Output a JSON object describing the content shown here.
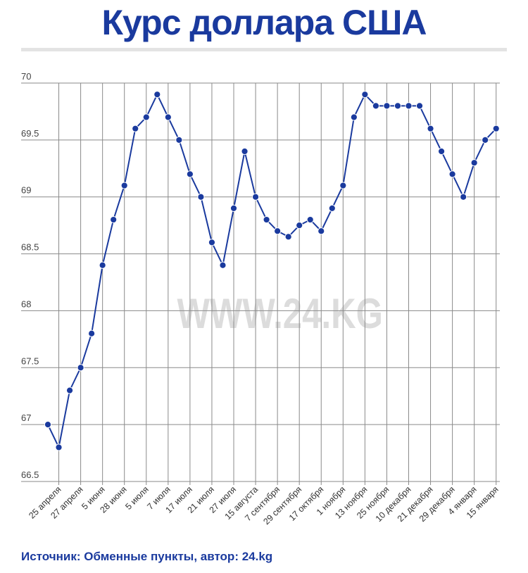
{
  "title": "Курс доллара США",
  "source": "Источник: Обменные пункты, автор: 24.kg",
  "watermark": "WWW.24.KG",
  "colors": {
    "title": "#1a3a9e",
    "line": "#1a3a9e",
    "grid": "#8a8a8a",
    "watermark": "#dcdcdc"
  },
  "chart_data": {
    "type": "line",
    "title": "Курс доллара США",
    "xlabel": "",
    "ylabel": "",
    "ylim": [
      66.5,
      70
    ],
    "yticks": [
      "66.5",
      "67",
      "67.5",
      "68",
      "68.5",
      "69",
      "69.5",
      "70"
    ],
    "x_tick_labels": [
      "25 апреля",
      "27 апреля",
      "5 июня",
      "28 июня",
      "5 июля",
      "7 июля",
      "17 июля",
      "21 июля",
      "27 июля",
      "15 августа",
      "7 сентября",
      "29 сентября",
      "17 октября",
      "1 ноября",
      "13 ноября",
      "25 ноября",
      "10 декабря",
      "21 декабря",
      "29 декабря",
      "4 января",
      "15 января"
    ],
    "grid": true,
    "legend": "none",
    "values": [
      67.0,
      66.8,
      67.3,
      67.5,
      67.8,
      68.4,
      68.8,
      69.1,
      69.6,
      69.7,
      69.9,
      69.7,
      69.5,
      69.2,
      69.0,
      68.6,
      68.4,
      68.9,
      69.4,
      69.0,
      68.8,
      68.7,
      68.65,
      68.75,
      68.8,
      68.7,
      68.9,
      69.1,
      69.7,
      69.9,
      69.8,
      69.8,
      69.8,
      69.8,
      69.8,
      69.6,
      69.4,
      69.2,
      69.0,
      69.3,
      69.5,
      69.6
    ]
  }
}
